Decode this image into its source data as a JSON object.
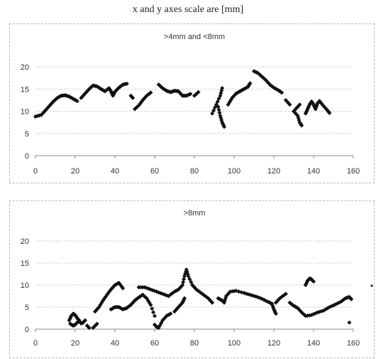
{
  "caption": "x and y axes scale are [mm]",
  "chart_data": [
    {
      "type": "scatter",
      "title": ">4mm and <8mm",
      "xlim": [
        0,
        160
      ],
      "ylim": [
        0,
        20
      ],
      "xticks": [
        0,
        20,
        40,
        60,
        80,
        100,
        120,
        140,
        160
      ],
      "yticks": [
        0,
        5,
        10,
        15,
        20
      ],
      "grid": "horizontal",
      "marker": "diamond",
      "color": "#111111",
      "segments": [
        [
          [
            0,
            8.8
          ],
          [
            3,
            9.2
          ],
          [
            5,
            10.2
          ],
          [
            7,
            11.2
          ],
          [
            9,
            12.2
          ],
          [
            11,
            13
          ],
          [
            13,
            13.5
          ],
          [
            15,
            13.6
          ],
          [
            17,
            13.3
          ],
          [
            19,
            12.8
          ],
          [
            21,
            12.3
          ]
        ],
        [
          [
            23,
            13
          ],
          [
            25,
            14
          ],
          [
            27,
            15
          ],
          [
            29,
            15.8
          ],
          [
            31,
            15.6
          ],
          [
            33,
            15
          ],
          [
            35,
            14.5
          ],
          [
            37,
            15.2
          ],
          [
            38,
            14.5
          ],
          [
            39,
            13.5
          ],
          [
            40,
            14.4
          ],
          [
            42,
            15.3
          ],
          [
            44,
            16
          ],
          [
            46,
            16.2
          ]
        ],
        [
          [
            48,
            13.5
          ],
          [
            49,
            13
          ]
        ],
        [
          [
            50,
            10.5
          ],
          [
            52,
            11.3
          ],
          [
            54,
            12.5
          ],
          [
            56,
            13.5
          ],
          [
            58,
            14.2
          ]
        ],
        [
          [
            62,
            16
          ],
          [
            64,
            15.2
          ],
          [
            66,
            14.6
          ],
          [
            68,
            14.3
          ],
          [
            70,
            14.6
          ],
          [
            72,
            14.5
          ],
          [
            74,
            13.5
          ],
          [
            76,
            13.5
          ],
          [
            78,
            13.9
          ]
        ],
        [
          [
            80,
            13.5
          ],
          [
            82,
            14.3
          ]
        ],
        [
          [
            89,
            9.5
          ],
          [
            91,
            11.5
          ],
          [
            93,
            13.5
          ],
          [
            94,
            15.2
          ]
        ],
        [
          [
            92,
            11
          ],
          [
            93,
            9
          ],
          [
            94,
            7.5
          ],
          [
            95,
            6.5
          ]
        ],
        [
          [
            97,
            11.5
          ],
          [
            99,
            13
          ],
          [
            101,
            14
          ],
          [
            103,
            14.5
          ],
          [
            105,
            15
          ],
          [
            107,
            15.5
          ],
          [
            108,
            16.3
          ]
        ],
        [
          [
            110,
            19
          ],
          [
            112,
            18.6
          ],
          [
            114,
            17.8
          ],
          [
            116,
            17
          ],
          [
            118,
            16
          ],
          [
            120,
            15.3
          ],
          [
            122,
            14.8
          ],
          [
            124,
            14.2
          ]
        ],
        [
          [
            126,
            12.5
          ],
          [
            128,
            11.5
          ]
        ],
        [
          [
            130,
            10
          ],
          [
            132,
            9
          ],
          [
            133,
            7.5
          ],
          [
            134,
            6.8
          ]
        ],
        [
          [
            131,
            10.5
          ],
          [
            133,
            11.5
          ]
        ],
        [
          [
            136,
            9.5
          ],
          [
            137,
            10.5
          ],
          [
            138,
            11.5
          ],
          [
            139,
            12.2
          ],
          [
            140,
            11.5
          ],
          [
            141,
            10.5
          ],
          [
            142,
            11.8
          ],
          [
            143,
            12.3
          ],
          [
            145,
            11.2
          ],
          [
            147,
            10.2
          ],
          [
            148,
            9.6
          ]
        ]
      ]
    },
    {
      "type": "scatter",
      "title": ">8mm",
      "xlim": [
        0,
        160
      ],
      "ylim": [
        0,
        20
      ],
      "xticks": [
        0,
        20,
        40,
        60,
        80,
        100,
        120,
        140,
        160
      ],
      "yticks": [
        0,
        5,
        10,
        15,
        20
      ],
      "grid": "horizontal",
      "marker": "diamond",
      "color": "#111111",
      "segments": [
        [
          [
            17,
            2
          ],
          [
            18,
            3
          ],
          [
            19,
            3.5
          ],
          [
            20,
            3.2
          ],
          [
            21,
            2.5
          ],
          [
            22,
            2
          ]
        ],
        [
          [
            17.5,
            1.2
          ],
          [
            19,
            0.8
          ],
          [
            20,
            1
          ],
          [
            21,
            1.5
          ],
          [
            22,
            1.8
          ],
          [
            23,
            1.3
          ],
          [
            24,
            1.5
          ],
          [
            25,
            2
          ]
        ],
        [
          [
            26,
            0.8
          ],
          [
            27,
            0.3
          ]
        ],
        [
          [
            29,
            0.3
          ],
          [
            31,
            1.2
          ]
        ],
        [
          [
            30,
            4
          ],
          [
            32,
            5
          ],
          [
            34,
            6.5
          ],
          [
            36,
            7.8
          ],
          [
            38,
            9
          ],
          [
            40,
            10
          ],
          [
            42,
            10.5
          ],
          [
            44,
            9.3
          ]
        ],
        [
          [
            38,
            4.5
          ],
          [
            40,
            5
          ],
          [
            42,
            5
          ],
          [
            44,
            4.5
          ],
          [
            46,
            4.8
          ],
          [
            48,
            5.5
          ],
          [
            50,
            6.5
          ],
          [
            52,
            7.2
          ],
          [
            54,
            7.8
          ],
          [
            56,
            7
          ],
          [
            58,
            5.5
          ],
          [
            60,
            3
          ]
        ],
        [
          [
            52,
            9.5
          ],
          [
            55,
            9.5
          ],
          [
            58,
            9
          ],
          [
            61,
            8.5
          ],
          [
            64,
            8
          ],
          [
            67,
            7.5
          ],
          [
            70,
            8.5
          ],
          [
            72,
            9
          ],
          [
            74,
            10
          ],
          [
            75,
            12
          ],
          [
            76,
            13.5
          ],
          [
            77,
            12
          ],
          [
            79,
            10
          ],
          [
            81,
            9
          ],
          [
            84,
            8
          ],
          [
            87,
            7
          ],
          [
            89,
            6
          ]
        ],
        [
          [
            60,
            1
          ],
          [
            61,
            0.5
          ],
          [
            62,
            0.3
          ],
          [
            64,
            2
          ],
          [
            66,
            3
          ],
          [
            68,
            3.5
          ]
        ],
        [
          [
            70,
            4
          ],
          [
            72,
            5
          ],
          [
            74,
            6
          ],
          [
            75,
            7
          ]
        ],
        [
          [
            92,
            7
          ],
          [
            94,
            6.5
          ],
          [
            95,
            6
          ],
          [
            96,
            7.5
          ],
          [
            98,
            8.5
          ],
          [
            101,
            8.7
          ],
          [
            105,
            8.2
          ],
          [
            108,
            7.8
          ],
          [
            111,
            7.4
          ],
          [
            114,
            6.9
          ],
          [
            117,
            6.2
          ],
          [
            119,
            5.8
          ],
          [
            120,
            4.5
          ],
          [
            121,
            3.5
          ]
        ],
        [
          [
            121,
            6
          ],
          [
            123,
            7
          ],
          [
            126,
            8
          ]
        ],
        [
          [
            128,
            6
          ],
          [
            130,
            5.3
          ],
          [
            132,
            4.8
          ],
          [
            134,
            3.8
          ],
          [
            136,
            3
          ],
          [
            139,
            3.2
          ],
          [
            142,
            3.8
          ],
          [
            145,
            4.2
          ],
          [
            148,
            5
          ],
          [
            151,
            5.6
          ],
          [
            154,
            6.3
          ],
          [
            156,
            7
          ],
          [
            158,
            7.3
          ],
          [
            159,
            6.8
          ]
        ],
        [
          [
            136,
            10
          ],
          [
            137,
            11
          ],
          [
            138,
            11.5
          ],
          [
            139,
            11.3
          ],
          [
            140,
            10.8
          ]
        ],
        [
          [
            158,
            1.5
          ]
        ]
      ]
    }
  ]
}
